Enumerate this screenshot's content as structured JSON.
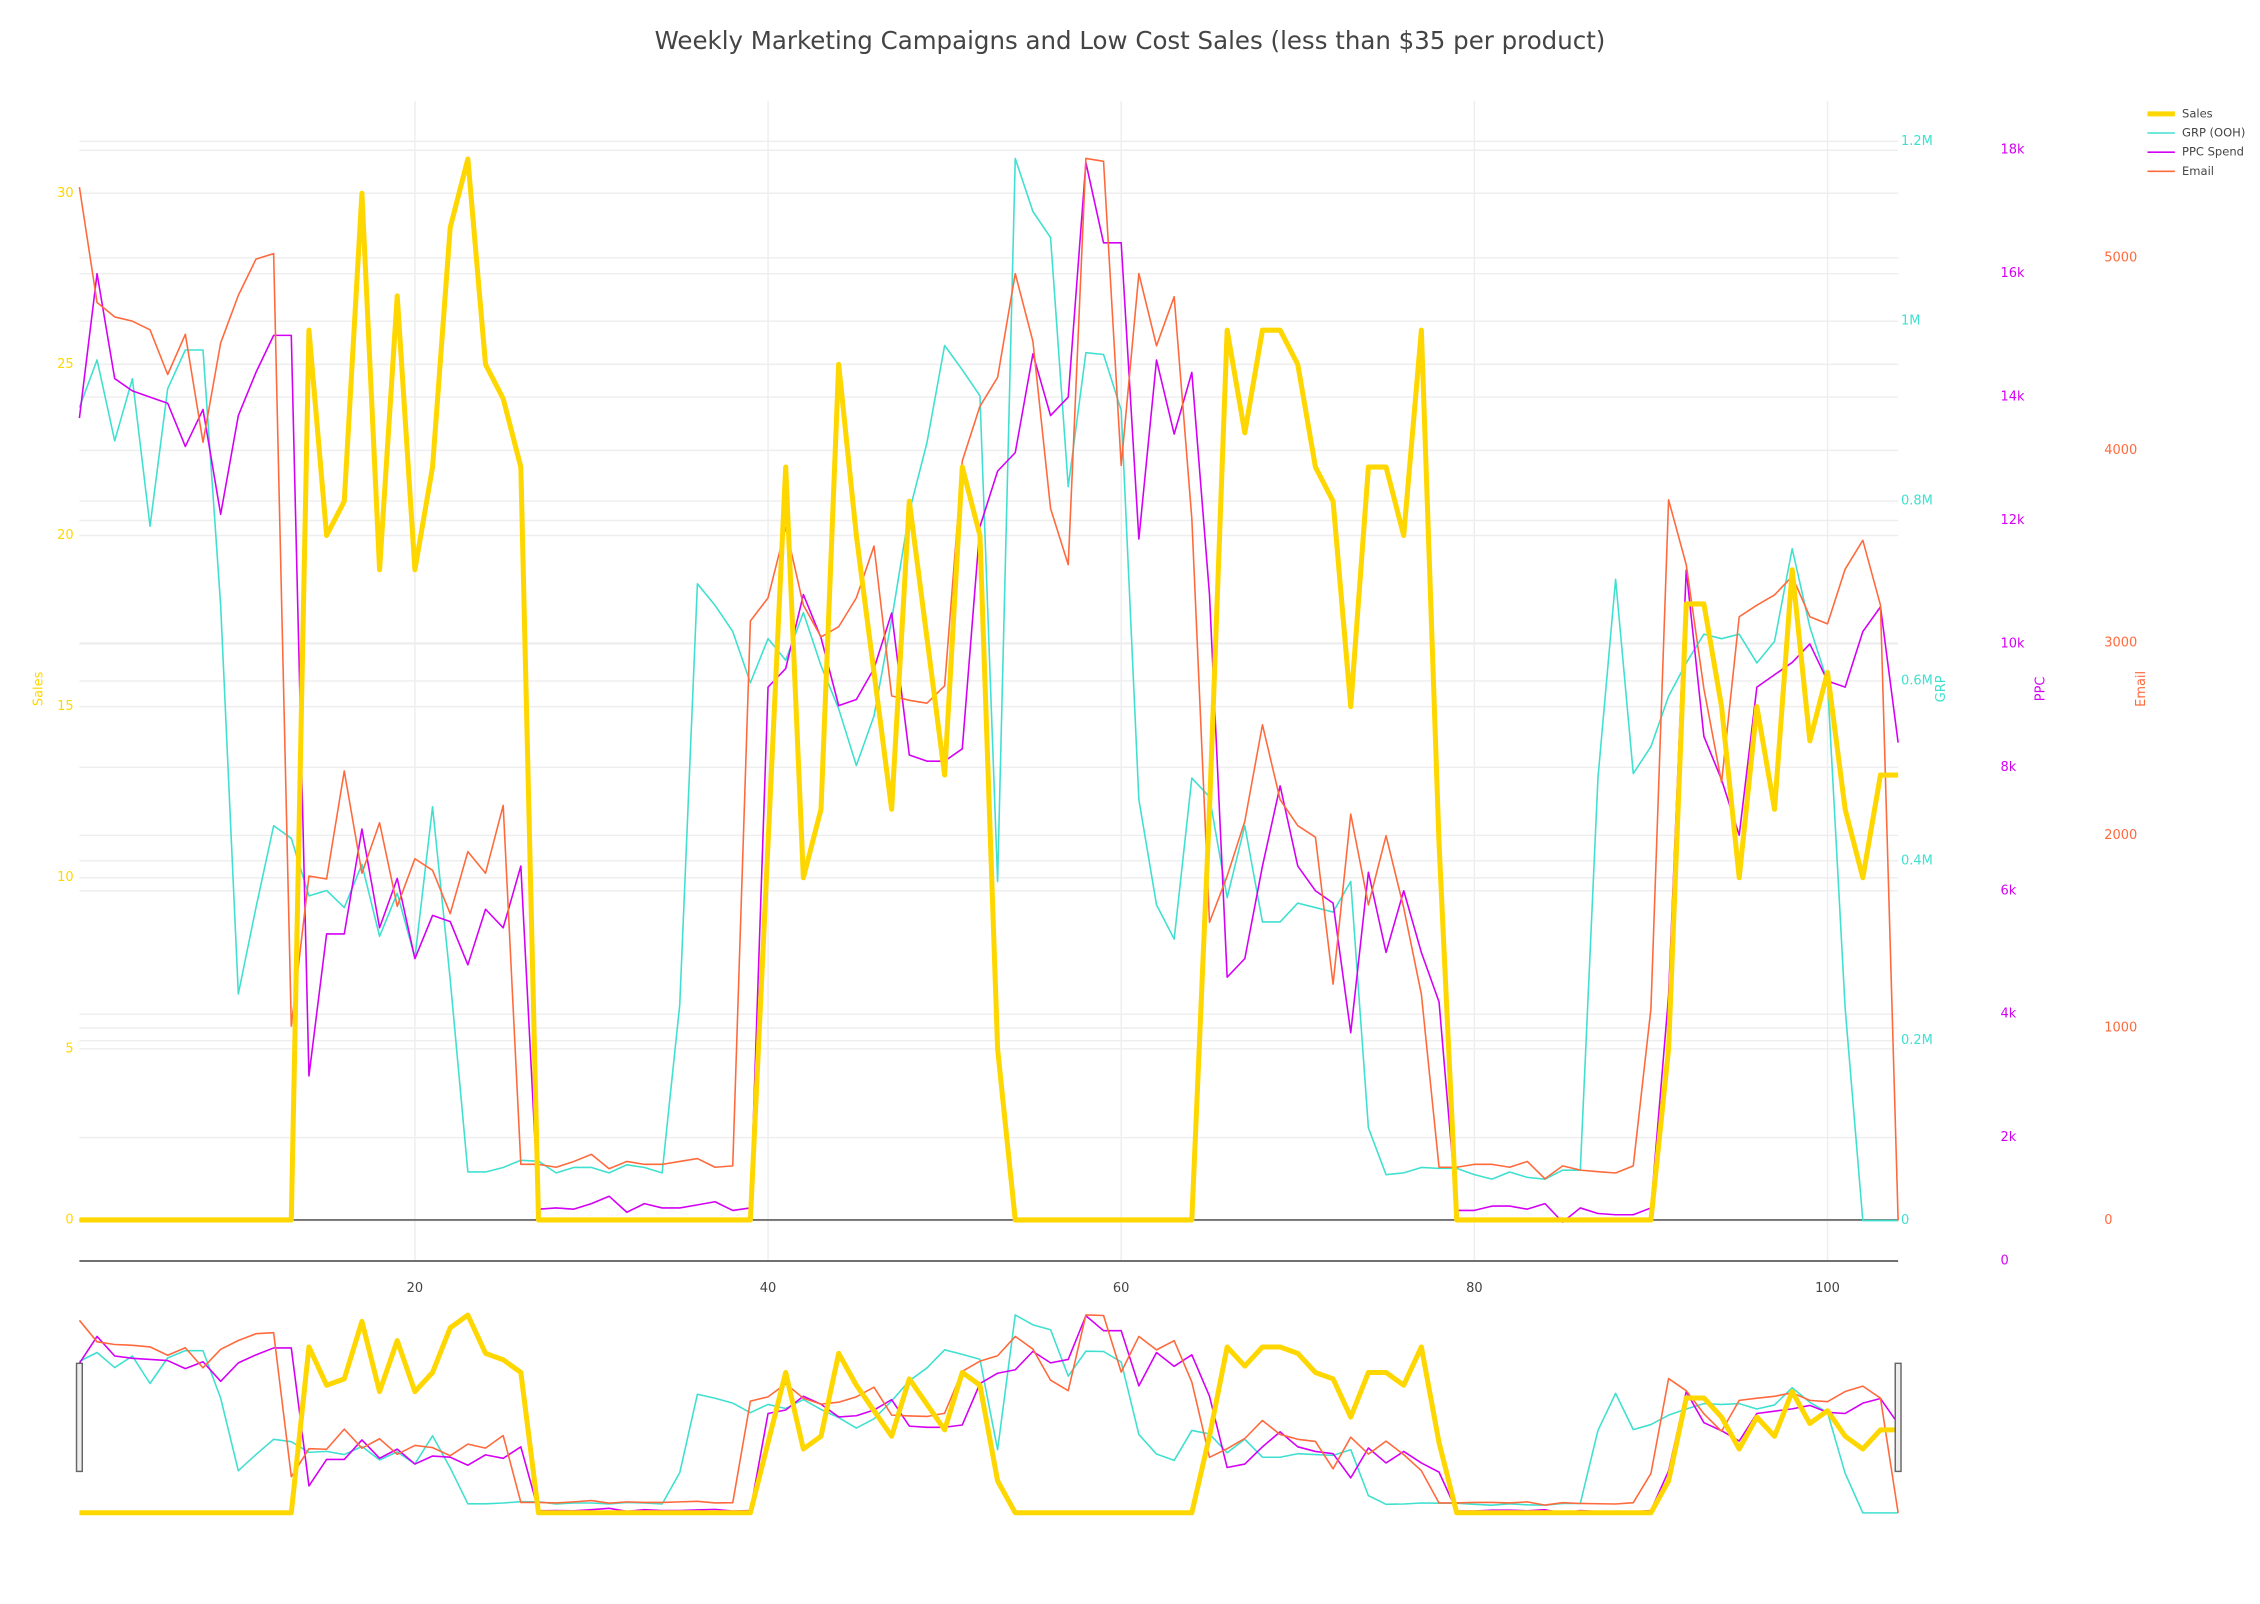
{
  "chart_data": {
    "type": "line",
    "title": "Weekly Marketing Campaigns and Low Cost Sales (less than $35 per product)",
    "x": [
      1,
      2,
      3,
      4,
      5,
      6,
      7,
      8,
      9,
      10,
      11,
      12,
      13,
      14,
      15,
      16,
      17,
      18,
      19,
      20,
      21,
      22,
      23,
      24,
      25,
      26,
      27,
      28,
      29,
      30,
      31,
      32,
      33,
      34,
      35,
      36,
      37,
      38,
      39,
      40,
      41,
      42,
      43,
      44,
      45,
      46,
      47,
      48,
      49,
      50,
      51,
      52,
      53,
      54,
      55,
      56,
      57,
      58,
      59,
      60,
      61,
      62,
      63,
      64,
      65,
      66,
      67,
      68,
      69,
      70,
      71,
      72,
      73,
      74,
      75,
      76,
      77,
      78,
      79,
      80,
      81,
      82,
      83,
      84,
      85,
      86,
      87,
      88,
      89,
      90,
      91,
      92,
      93,
      94,
      95,
      96,
      97,
      98,
      99,
      100,
      101,
      102,
      103,
      104
    ],
    "xlim": [
      1,
      104
    ],
    "xticks": [
      20,
      40,
      60,
      80,
      100
    ],
    "ylabel": "Sales",
    "ylim": [
      -1.2,
      32.7
    ],
    "yticks": [
      0,
      5,
      10,
      15,
      20,
      25,
      30
    ],
    "y2label": "GRP",
    "y2lim": [
      -45000,
      1245000
    ],
    "y2ticks": [
      0,
      {
        "value": 200000,
        "label": "0.2M"
      },
      {
        "value": 400000,
        "label": "0.4M"
      },
      {
        "value": 600000,
        "label": "0.6M"
      },
      {
        "value": 800000,
        "label": "0.8M"
      },
      {
        "value": 1000000,
        "label": "1M"
      },
      {
        "value": 1200000,
        "label": "1.2M"
      }
    ],
    "y3label": "PPC",
    "y3lim": [
      0,
      18800
    ],
    "y3ticks": [
      0,
      {
        "value": 2000,
        "label": "2k"
      },
      {
        "value": 4000,
        "label": "4k"
      },
      {
        "value": 6000,
        "label": "6k"
      },
      {
        "value": 8000,
        "label": "8k"
      },
      {
        "value": 10000,
        "label": "10k"
      },
      {
        "value": 12000,
        "label": "12k"
      },
      {
        "value": 14000,
        "label": "14k"
      },
      {
        "value": 16000,
        "label": "16k"
      },
      {
        "value": 18000,
        "label": "18k"
      }
    ],
    "y4label": "Email",
    "y4lim": [
      -210,
      5815
    ],
    "y4ticks": [
      0,
      1000,
      2000,
      3000,
      4000,
      5000
    ],
    "grid": true,
    "rangeslider": true,
    "legend": "top-right",
    "series": [
      {
        "name": "Sales",
        "color": "#ffd700",
        "axis": "y",
        "line_width": 3.5,
        "values": [
          0,
          0,
          0,
          0,
          0,
          0,
          0,
          0,
          0,
          0,
          0,
          0,
          0,
          26,
          20,
          21,
          30,
          19,
          27,
          19,
          22,
          29,
          31,
          25,
          24,
          22,
          0,
          0,
          0,
          0,
          0,
          0,
          0,
          0,
          0,
          0,
          0,
          0,
          0,
          11,
          22,
          10,
          12,
          25,
          20,
          16,
          12,
          21,
          17,
          13,
          22,
          20,
          5,
          0,
          0,
          0,
          0,
          0,
          0,
          0,
          0,
          0,
          0,
          0,
          12,
          26,
          23,
          26,
          26,
          25,
          22,
          21,
          15,
          22,
          22,
          20,
          26,
          11,
          0,
          0,
          0,
          0,
          0,
          0,
          0,
          0,
          0,
          0,
          0,
          0,
          5,
          18,
          18,
          15,
          10,
          15,
          12,
          19,
          14,
          16,
          12,
          10,
          13,
          13
        ]
      },
      {
        "name": "GRP (OOH)",
        "color": "#40e0d0",
        "axis": "y2",
        "line_width": 1.1,
        "values": [
          904000,
          957000,
          867000,
          936000,
          772000,
          925000,
          968000,
          968000,
          684000,
          252000,
          348000,
          439000,
          425000,
          361000,
          367000,
          348000,
          396000,
          316000,
          364000,
          292000,
          460000,
          268000,
          54000,
          54000,
          59000,
          67000,
          66000,
          53000,
          59000,
          59000,
          53000,
          62000,
          59000,
          53000,
          240000,
          708000,
          684000,
          655000,
          598000,
          647000,
          623000,
          676000,
          617000,
          569000,
          506000,
          561000,
          668000,
          788000,
          865000,
          973000,
          946000,
          917000,
          377000,
          1181000,
          1122000,
          1093000,
          816000,
          965000,
          963000,
          901000,
          468000,
          351000,
          313000,
          492000,
          471000,
          359000,
          439000,
          332000,
          332000,
          353000,
          348000,
          343000,
          377000,
          103000,
          51000,
          53000,
          59000,
          58000,
          58000,
          51000,
          46000,
          54000,
          48000,
          46000,
          56000,
          56000,
          492000,
          713000,
          497000,
          527000,
          583000,
          620000,
          652000,
          647000,
          652000,
          620000,
          644000,
          747000,
          660000,
          599000,
          236000,
          0,
          0,
          0
        ]
      },
      {
        "name": "PPC Spend",
        "color": "#d400f5",
        "axis": "y3",
        "line_width": 1.1,
        "values": [
          13660,
          16000,
          14300,
          14100,
          14000,
          13900,
          13200,
          13800,
          12100,
          13700,
          14400,
          15000,
          15000,
          3000,
          5300,
          5300,
          7000,
          5400,
          6200,
          4900,
          5600,
          5500,
          4800,
          5700,
          5400,
          6400,
          840,
          860,
          840,
          930,
          1050,
          790,
          930,
          860,
          860,
          910,
          960,
          820,
          860,
          9300,
          9600,
          10800,
          10100,
          9000,
          9100,
          9600,
          10500,
          8200,
          8100,
          8100,
          8300,
          11900,
          12800,
          13100,
          14700,
          13700,
          14000,
          17800,
          16500,
          16500,
          11700,
          14600,
          13400,
          14400,
          10800,
          4600,
          4900,
          6400,
          7700,
          6400,
          6000,
          5800,
          3700,
          6300,
          5000,
          6000,
          5000,
          4200,
          820,
          820,
          890,
          890,
          840,
          930,
          630,
          860,
          770,
          750,
          750,
          860,
          4300,
          11200,
          8500,
          7800,
          6900,
          9300,
          9500,
          9700,
          10000,
          9400,
          9300,
          10200,
          10600,
          8400
        ]
      },
      {
        "name": "Email",
        "color": "#ff6a3d",
        "axis": "y4",
        "line_width": 1.1,
        "values": [
          5367,
          4768,
          4693,
          4671,
          4626,
          4394,
          4603,
          4042,
          4558,
          4805,
          4993,
          5022,
          1010,
          1789,
          1774,
          2335,
          1804,
          2066,
          1632,
          1879,
          1819,
          1594,
          1916,
          1804,
          2156,
          292,
          292,
          277,
          307,
          344,
          269,
          307,
          292,
          292,
          307,
          322,
          277,
          284,
          3114,
          3234,
          3600,
          3196,
          3031,
          3084,
          3234,
          3503,
          2725,
          2702,
          2687,
          2777,
          3945,
          4229,
          4379,
          4918,
          4566,
          3698,
          3406,
          5516,
          5501,
          3922,
          4918,
          4543,
          4798,
          3645,
          1549,
          1789,
          2073,
          2575,
          2186,
          2051,
          1991,
          1228,
          2111,
          1639,
          1999,
          1624,
          1175,
          277,
          277,
          292,
          292,
          277,
          307,
          217,
          284,
          262,
          254,
          247,
          284,
          1100,
          3743,
          3406,
          2762,
          2275,
          3136,
          3196,
          3249,
          3346,
          3136,
          3099,
          3383,
          3533,
          3196,
          0
        ]
      }
    ]
  }
}
